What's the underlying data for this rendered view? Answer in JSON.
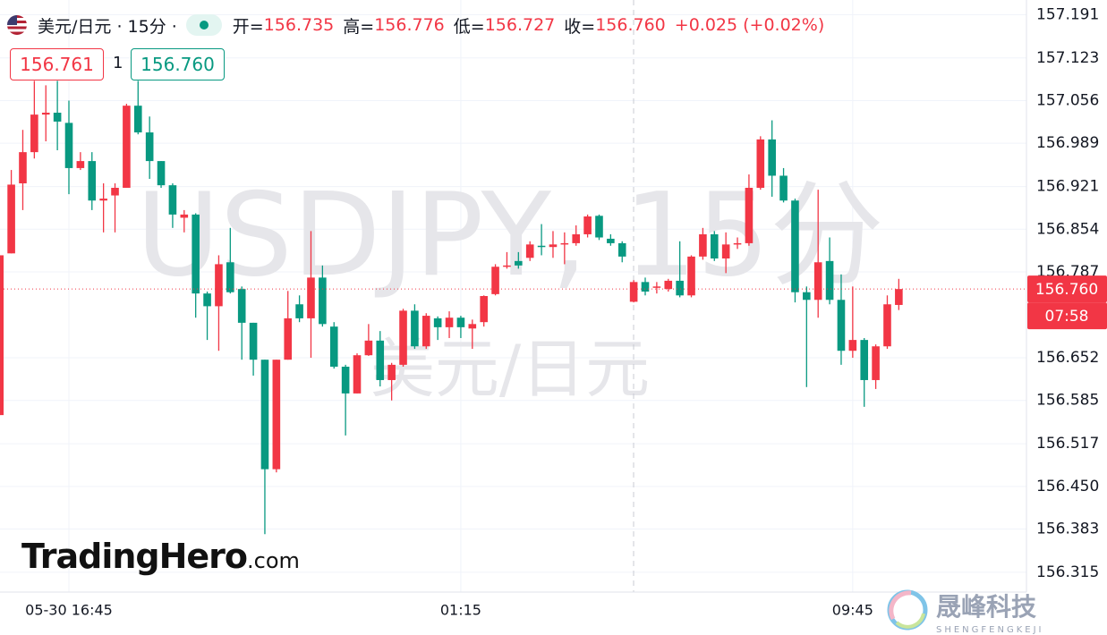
{
  "header": {
    "symbol": "美元/日元 · 15分 ·",
    "items": [
      {
        "label": "开=",
        "value": "156.735"
      },
      {
        "label": "高=",
        "value": "156.776"
      },
      {
        "label": "低=",
        "value": "156.727"
      },
      {
        "label": "收=",
        "value": "156.760"
      }
    ],
    "change": "+0.025 (+0.02%)"
  },
  "quote": {
    "bid": "156.761",
    "spread": "1",
    "ask": "156.760"
  },
  "branding": {
    "name": "TradingHero",
    "suffix": ".com",
    "cn": "晟峰科技",
    "pinyin": "SHENGFENGKEJI"
  },
  "chart_data": {
    "type": "candlestick",
    "watermark": {
      "symbol": "USDJPY, 15分",
      "name": "美元/日元"
    },
    "categories": [
      null,
      null,
      null,
      null,
      null,
      null,
      "05-30 16:45",
      null,
      null,
      null,
      null,
      null,
      null,
      null,
      null,
      null,
      null,
      null,
      null,
      null,
      null,
      null,
      null,
      null,
      null,
      null,
      null,
      null,
      null,
      null,
      null,
      null,
      null,
      null,
      null,
      null,
      null,
      null,
      null,
      null,
      "01:15",
      null,
      null,
      null,
      null,
      null,
      null,
      null,
      null,
      null,
      null,
      null,
      null,
      null,
      null,
      null,
      null,
      null,
      null,
      null,
      null,
      null,
      null,
      null,
      null,
      null,
      null,
      null,
      null,
      null,
      null,
      null,
      null,
      null,
      "09:45",
      null,
      null,
      null,
      null
    ],
    "open": [
      156.562,
      156.816,
      156.926,
      156.975,
      157.034,
      157.037,
      157.021,
      156.95,
      156.961,
      156.899,
      156.907,
      156.919,
      157.048,
      157.006,
      156.961,
      156.923,
      156.872,
      156.877,
      156.753,
      156.733,
      156.802,
      156.76,
      156.707,
      156.649,
      156.477,
      156.649,
      156.736,
      156.714,
      156.778,
      156.701,
      156.638,
      156.596,
      156.656,
      156.679,
      156.617,
      156.641,
      156.726,
      156.67,
      156.714,
      156.7,
      156.715,
      156.698,
      156.708,
      156.752,
      156.795,
      156.804,
      156.809,
      156.828,
      156.826,
      156.83,
      156.832,
      156.846,
      156.875,
      156.839,
      156.832,
      156.74,
      156.771,
      156.762,
      156.76,
      156.773,
      156.75,
      156.811,
      156.846,
      156.808,
      156.83,
      156.832,
      156.919,
      156.995,
      156.938,
      156.899,
      156.755,
      156.743,
      156.804,
      156.743,
      156.663,
      156.68,
      156.617,
      156.67,
      156.735
    ],
    "high": [
      156.813,
      156.947,
      157.01,
      157.087,
      157.08,
      157.087,
      157.056,
      156.975,
      156.975,
      156.926,
      156.926,
      157.051,
      157.087,
      157.031,
      156.961,
      156.926,
      156.884,
      156.879,
      156.756,
      156.813,
      156.856,
      156.764,
      156.707,
      156.649,
      156.649,
      156.757,
      156.75,
      156.851,
      156.797,
      156.708,
      156.641,
      156.659,
      156.705,
      156.694,
      156.644,
      156.729,
      156.736,
      156.722,
      156.717,
      156.725,
      156.718,
      156.712,
      156.75,
      156.799,
      156.818,
      156.818,
      156.835,
      156.862,
      156.851,
      156.849,
      156.86,
      156.877,
      156.877,
      156.846,
      156.835,
      156.774,
      156.778,
      156.771,
      156.776,
      156.835,
      156.813,
      156.856,
      156.851,
      156.849,
      156.841,
      156.94,
      157.0,
      157.025,
      156.95,
      156.902,
      156.764,
      156.916,
      156.841,
      156.783,
      156.764,
      156.683,
      156.673,
      156.75,
      156.776
    ],
    "low": [
      156.562,
      156.816,
      156.884,
      156.965,
      156.992,
      156.978,
      156.909,
      156.947,
      156.884,
      156.849,
      156.849,
      156.919,
      157.003,
      156.933,
      156.919,
      156.856,
      156.849,
      156.715,
      156.68,
      156.663,
      156.753,
      156.649,
      156.624,
      156.375,
      156.472,
      156.649,
      156.708,
      156.652,
      156.701,
      156.635,
      156.53,
      156.596,
      156.655,
      156.607,
      156.585,
      156.638,
      156.666,
      156.666,
      156.68,
      156.683,
      156.683,
      156.666,
      156.701,
      156.75,
      156.792,
      156.792,
      156.804,
      156.813,
      156.809,
      156.799,
      156.828,
      156.841,
      156.837,
      156.828,
      156.802,
      156.739,
      156.75,
      156.753,
      156.756,
      156.747,
      156.747,
      156.806,
      156.804,
      156.785,
      156.823,
      156.828,
      156.916,
      156.905,
      156.896,
      156.739,
      156.606,
      156.715,
      156.736,
      156.641,
      156.652,
      156.575,
      156.603,
      156.666,
      156.727
    ],
    "close": [
      156.813,
      156.924,
      156.975,
      157.034,
      157.037,
      157.023,
      156.95,
      156.961,
      156.899,
      156.902,
      156.919,
      157.048,
      157.006,
      156.961,
      156.923,
      156.877,
      156.877,
      156.753,
      156.733,
      156.799,
      156.755,
      156.707,
      156.649,
      156.477,
      156.649,
      156.714,
      156.714,
      156.778,
      156.705,
      156.638,
      156.596,
      156.656,
      156.679,
      156.617,
      156.641,
      156.726,
      156.67,
      156.718,
      156.7,
      156.715,
      156.7,
      156.705,
      156.749,
      156.795,
      156.797,
      156.797,
      156.83,
      156.826,
      156.83,
      156.832,
      156.846,
      156.874,
      156.841,
      156.832,
      156.811,
      156.771,
      156.756,
      156.764,
      156.773,
      156.75,
      156.811,
      156.846,
      156.808,
      156.83,
      156.832,
      156.919,
      156.995,
      156.938,
      156.899,
      156.755,
      156.743,
      156.802,
      156.743,
      156.663,
      156.68,
      156.617,
      156.67,
      156.736,
      156.76
    ],
    "up_color": "#f23645",
    "down_color": "#089981",
    "ylim": [
      156.284,
      157.214
    ],
    "yticks": [
      157.191,
      157.123,
      157.056,
      156.989,
      156.921,
      156.854,
      156.787,
      156.652,
      156.585,
      156.517,
      {
        "value": 156.45,
        "label": "156.450"
      },
      156.383,
      156.315
    ],
    "grid": true,
    "last_price": {
      "value": 156.76,
      "label": "156.760",
      "timer": "07:58"
    }
  }
}
